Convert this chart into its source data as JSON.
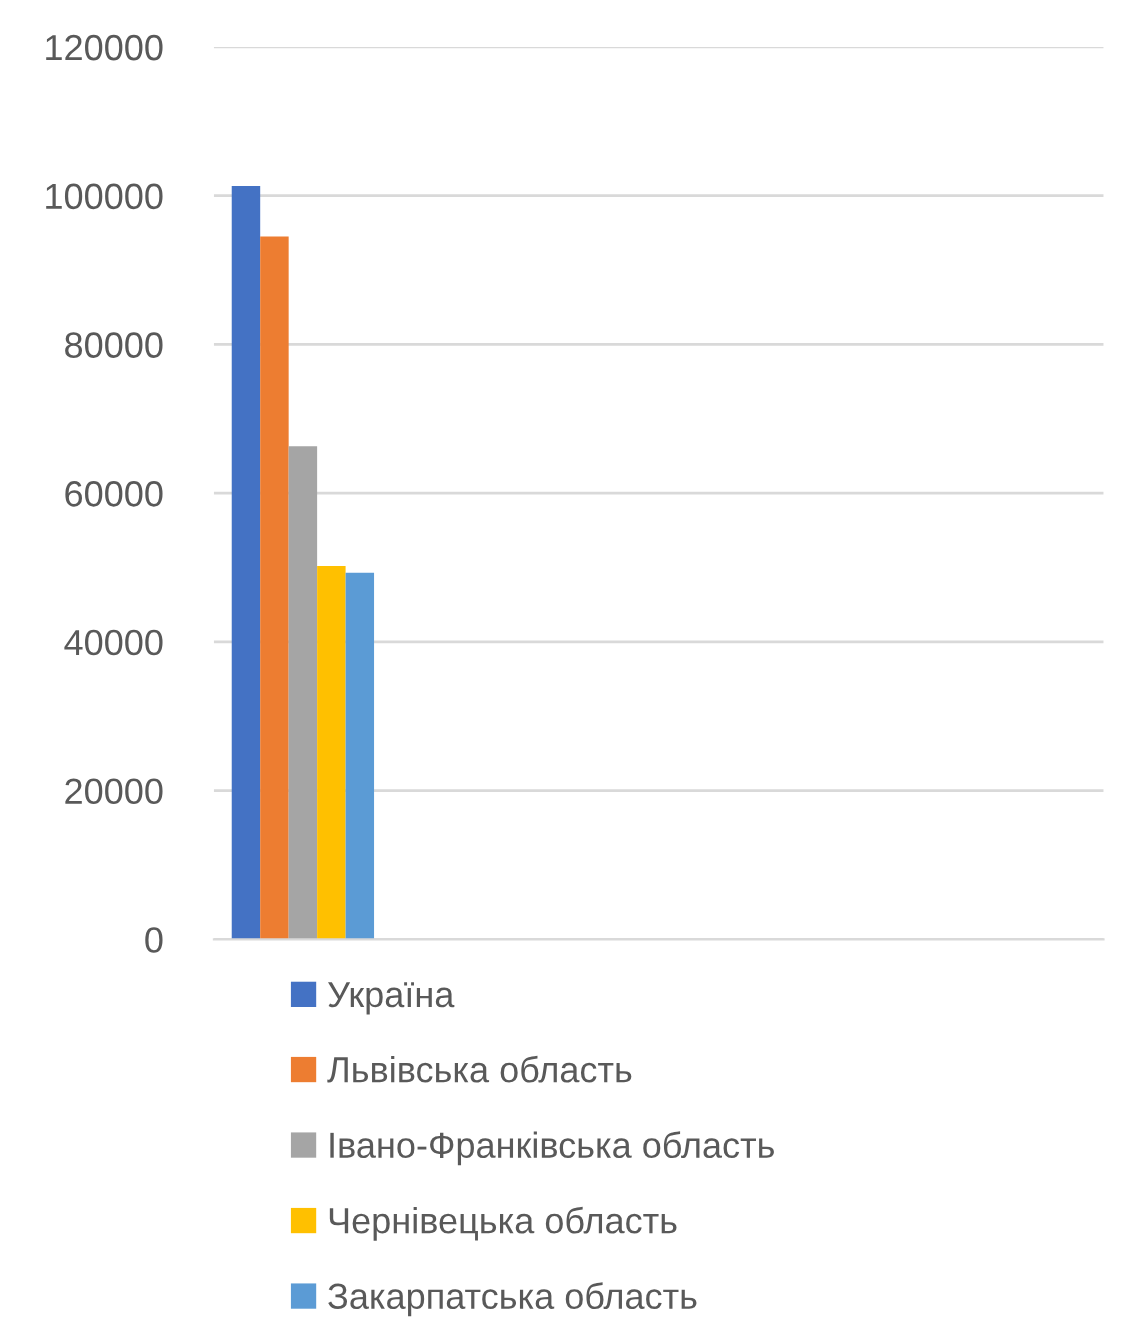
{
  "chart_data": {
    "type": "bar",
    "categories": [
      null
    ],
    "series": [
      {
        "name": "Україна",
        "color": "#4472c4",
        "values": [
          101300
        ]
      },
      {
        "name": "Львівська область",
        "color": "#ed7d31",
        "values": [
          94500
        ]
      },
      {
        "name": "Івано-Франківська область",
        "color": "#a5a5a5",
        "values": [
          66300
        ]
      },
      {
        "name": "Чернівецька область",
        "color": "#ffc000",
        "values": [
          50200
        ]
      },
      {
        "name": "Закарпатська область",
        "color": "#5b9bd5",
        "values": [
          49300
        ]
      }
    ],
    "ylim": [
      0,
      120000
    ],
    "yticks": [
      0,
      20000,
      40000,
      60000,
      80000,
      100000,
      120000
    ],
    "grid": "y",
    "legend": "bottom"
  }
}
